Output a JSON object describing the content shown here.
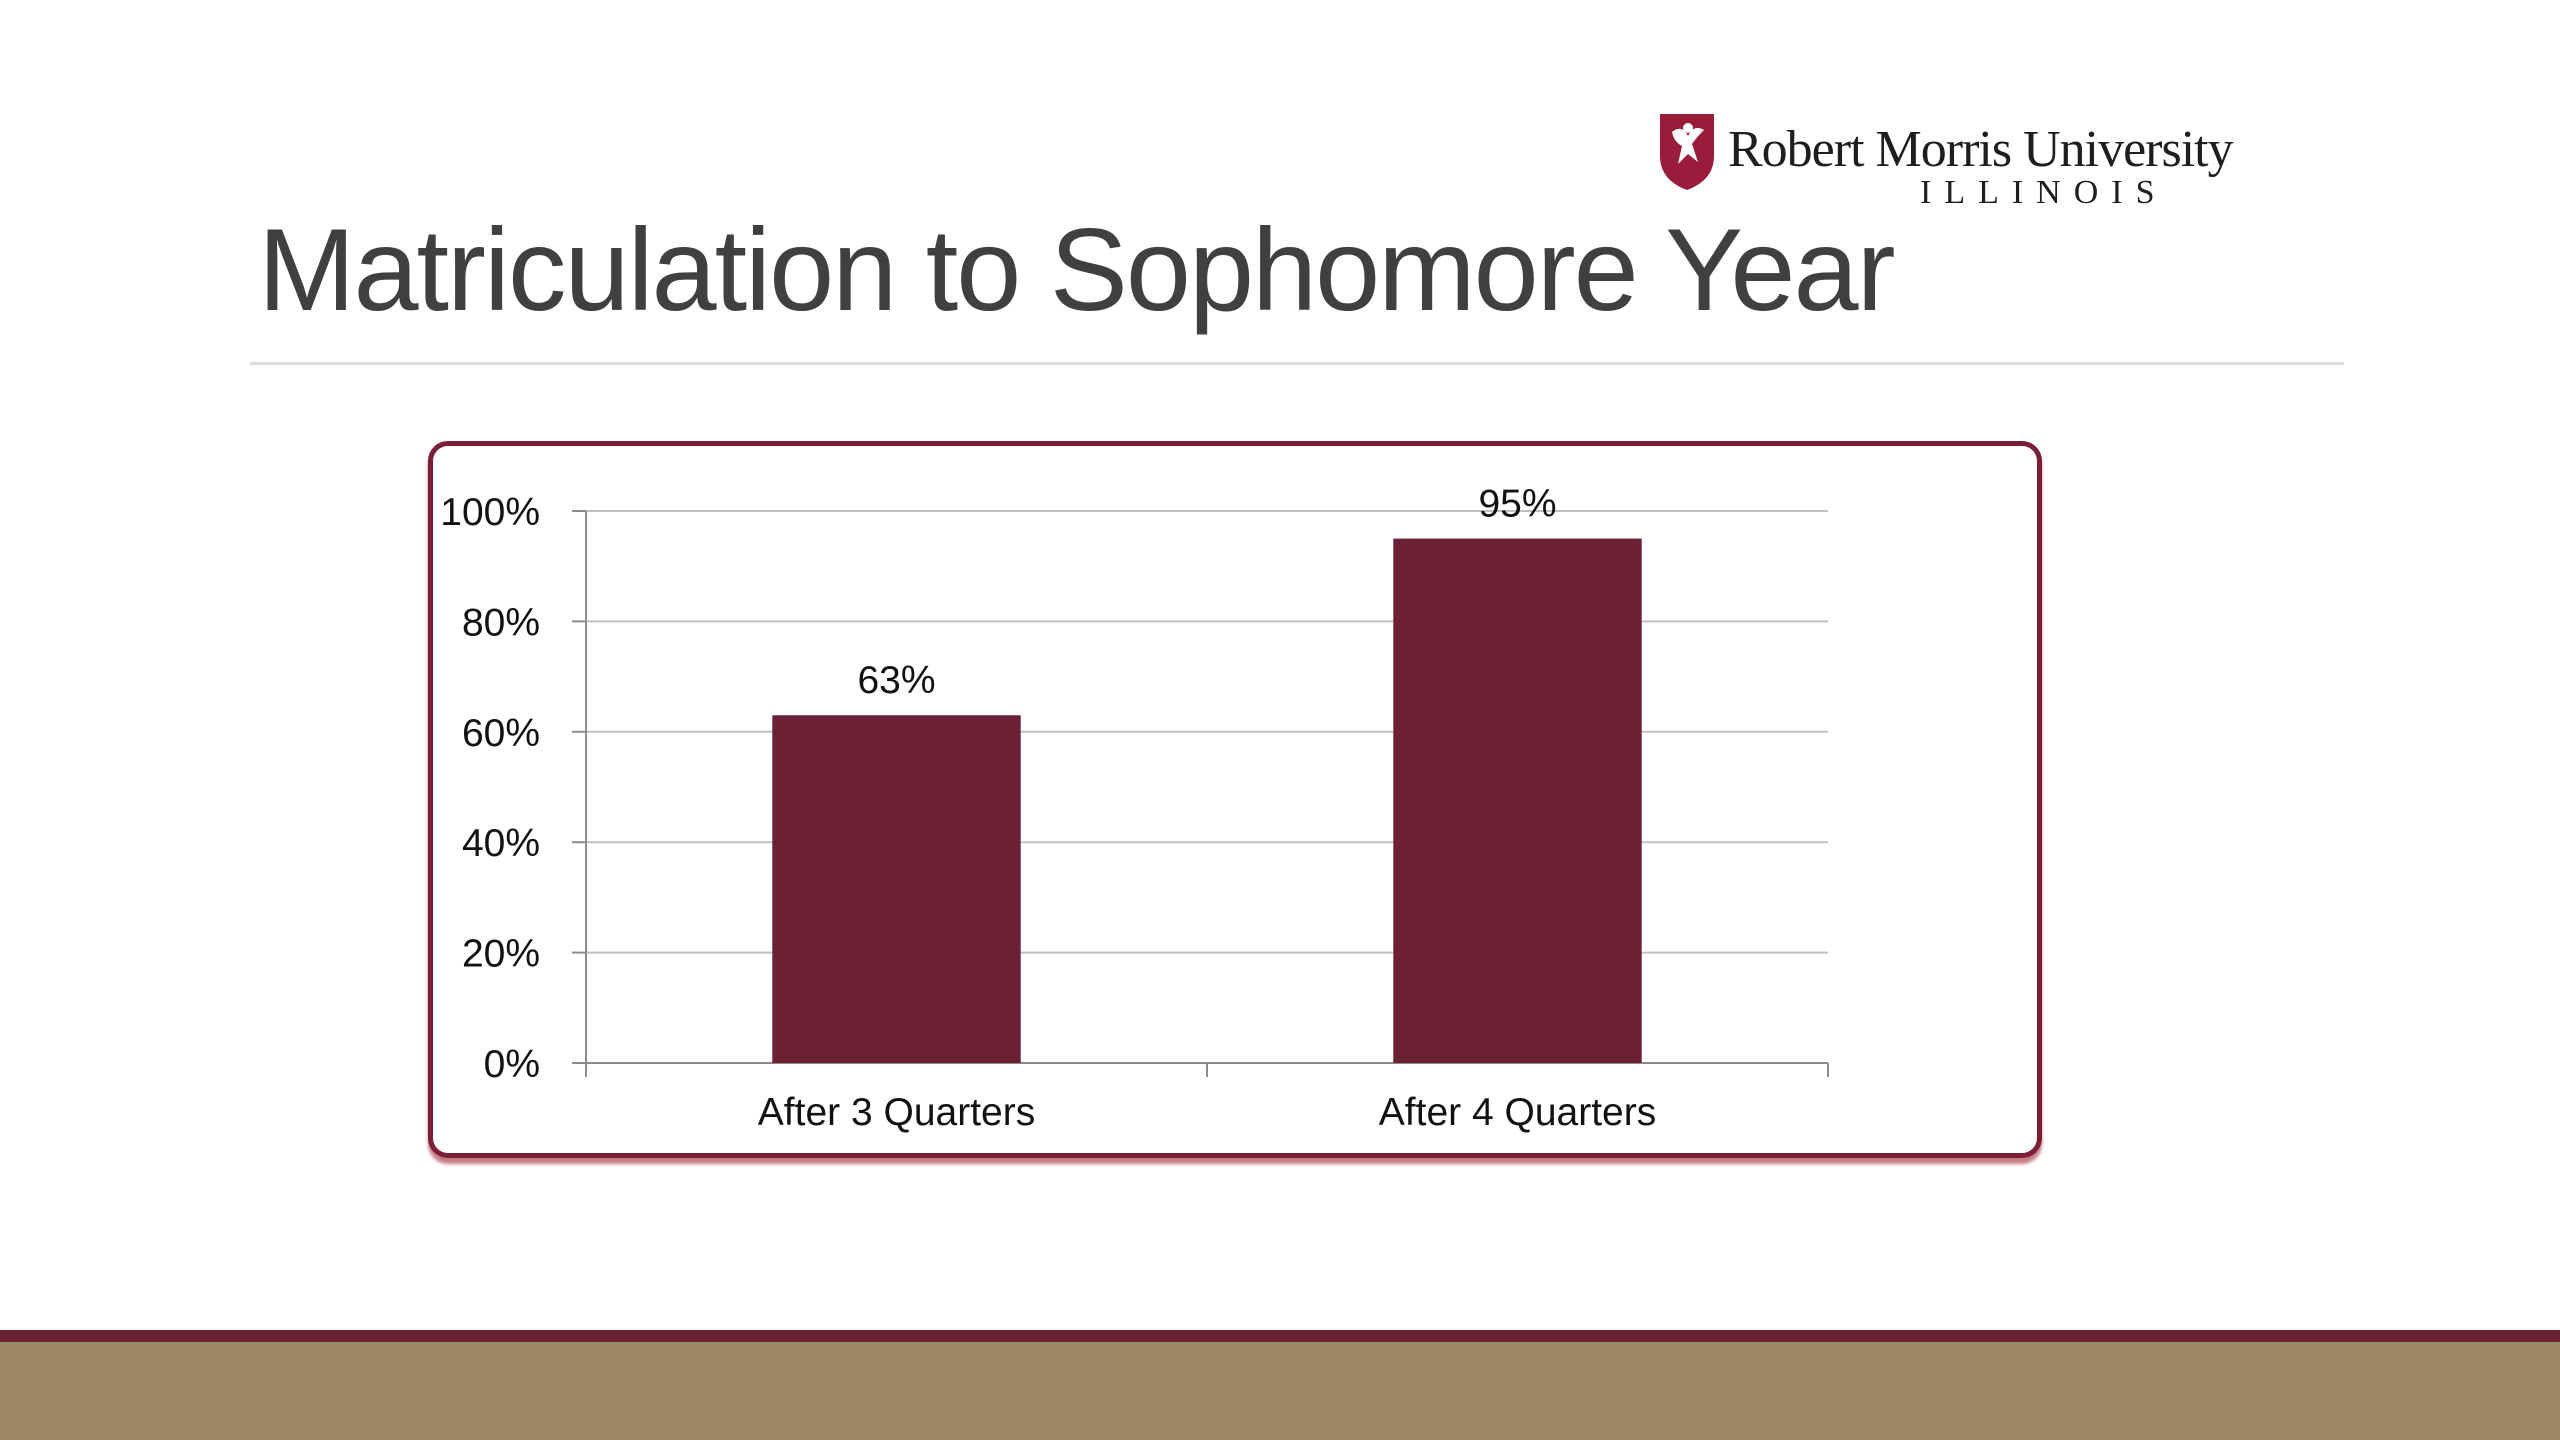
{
  "logo": {
    "name": "Robert Morris University",
    "subtitle": "ILLINOIS",
    "brand_color": "#9b1b3b"
  },
  "slide": {
    "title": "Matriculation to Sophomore Year"
  },
  "colors": {
    "bar": "#6b2036",
    "frame": "#7a1f35",
    "gridline": "#c0c0c0",
    "footer_line": "#6b2036",
    "footer_fill": "#9a8963"
  },
  "chart_data": {
    "type": "bar",
    "title": "",
    "xlabel": "",
    "ylabel": "",
    "categories": [
      "After 3 Quarters",
      "After 4 Quarters"
    ],
    "values": [
      63,
      95
    ],
    "data_labels": [
      "63%",
      "95%"
    ],
    "ylim": [
      0,
      100
    ],
    "yticks": [
      0,
      20,
      40,
      60,
      80,
      100
    ],
    "ytick_labels": [
      "0%",
      "20%",
      "40%",
      "60%",
      "80%",
      "100%"
    ],
    "grid": true,
    "legend": "none"
  }
}
